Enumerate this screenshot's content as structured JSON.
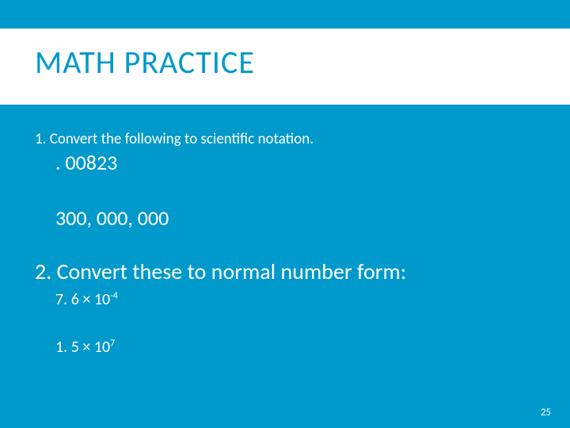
{
  "title": "MATH PRACTICE",
  "q1": {
    "prompt": "1.  Convert the following to scientific notation.",
    "val1": ". 00823",
    "val2": "300, 000, 000"
  },
  "q2": {
    "prompt": "2. Convert these to normal number form:",
    "val1_base": "7. 6 × 10",
    "val1_exp": "-4",
    "val2_base": "1. 5 × 10",
    "val2_exp": "7"
  },
  "page_number": "25",
  "colors": {
    "background": "#0099cc",
    "band": "#ffffff",
    "title": "#0099cc",
    "body_text": "#ffffff"
  }
}
